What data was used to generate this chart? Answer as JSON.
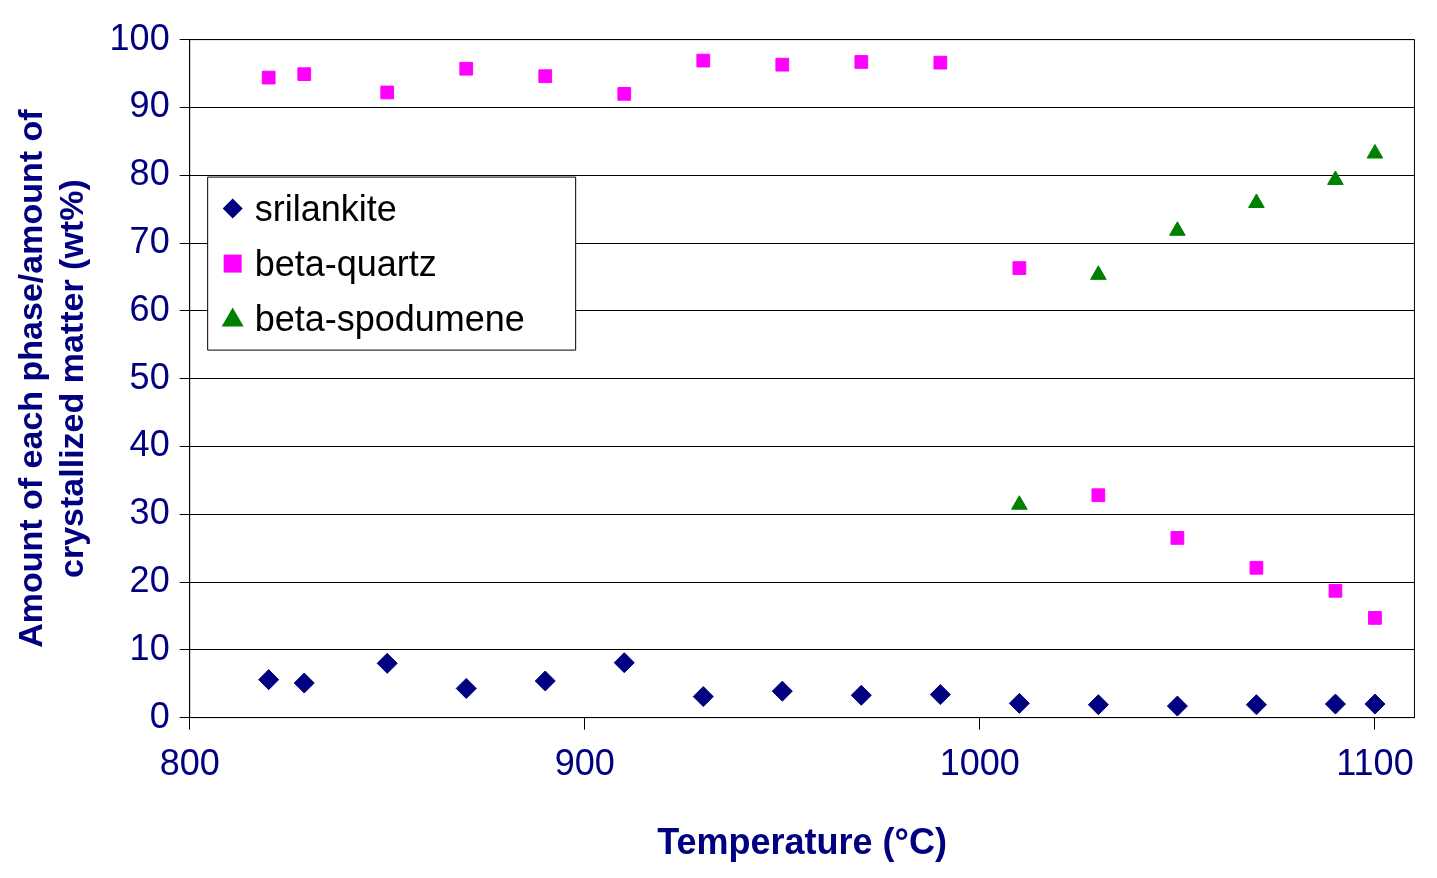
{
  "chart_data": {
    "type": "scatter",
    "xlabel": "Temperature (°C)",
    "ylabel": "Amount of each phase/amount of crystallized matter (wt%)",
    "x": [
      820,
      829,
      850,
      870,
      890,
      910,
      930,
      950,
      970,
      990,
      1010,
      1030,
      1050,
      1070,
      1090,
      1100
    ],
    "series": [
      {
        "name": "srilankite",
        "color": "#000080",
        "marker": "diamond",
        "values": [
          5.6,
          5.1,
          8.0,
          4.3,
          5.4,
          8.1,
          3.1,
          3.9,
          3.3,
          3.4,
          2.1,
          1.9,
          1.7,
          1.9,
          2.0,
          2.0
        ]
      },
      {
        "name": "beta-quartz",
        "color": "#ff00ff",
        "marker": "square",
        "values": [
          94.4,
          94.9,
          92.2,
          95.7,
          94.6,
          92.0,
          96.9,
          96.3,
          96.7,
          96.6,
          66.3,
          32.8,
          26.5,
          22.1,
          18.7,
          14.7
        ]
      },
      {
        "name": "beta-spodumene",
        "color": "#008000",
        "marker": "triangle",
        "values": [
          null,
          null,
          null,
          null,
          null,
          null,
          null,
          null,
          null,
          null,
          31.4,
          65.3,
          71.8,
          75.9,
          79.3,
          83.2
        ]
      }
    ],
    "xlim": [
      800,
      1110
    ],
    "xticks": [
      800,
      900,
      1000,
      1100
    ],
    "ylim": [
      0,
      100
    ],
    "yticks": [
      0,
      10,
      20,
      30,
      40,
      50,
      60,
      70,
      80,
      90,
      100
    ],
    "grid": "y",
    "legend": "left"
  }
}
